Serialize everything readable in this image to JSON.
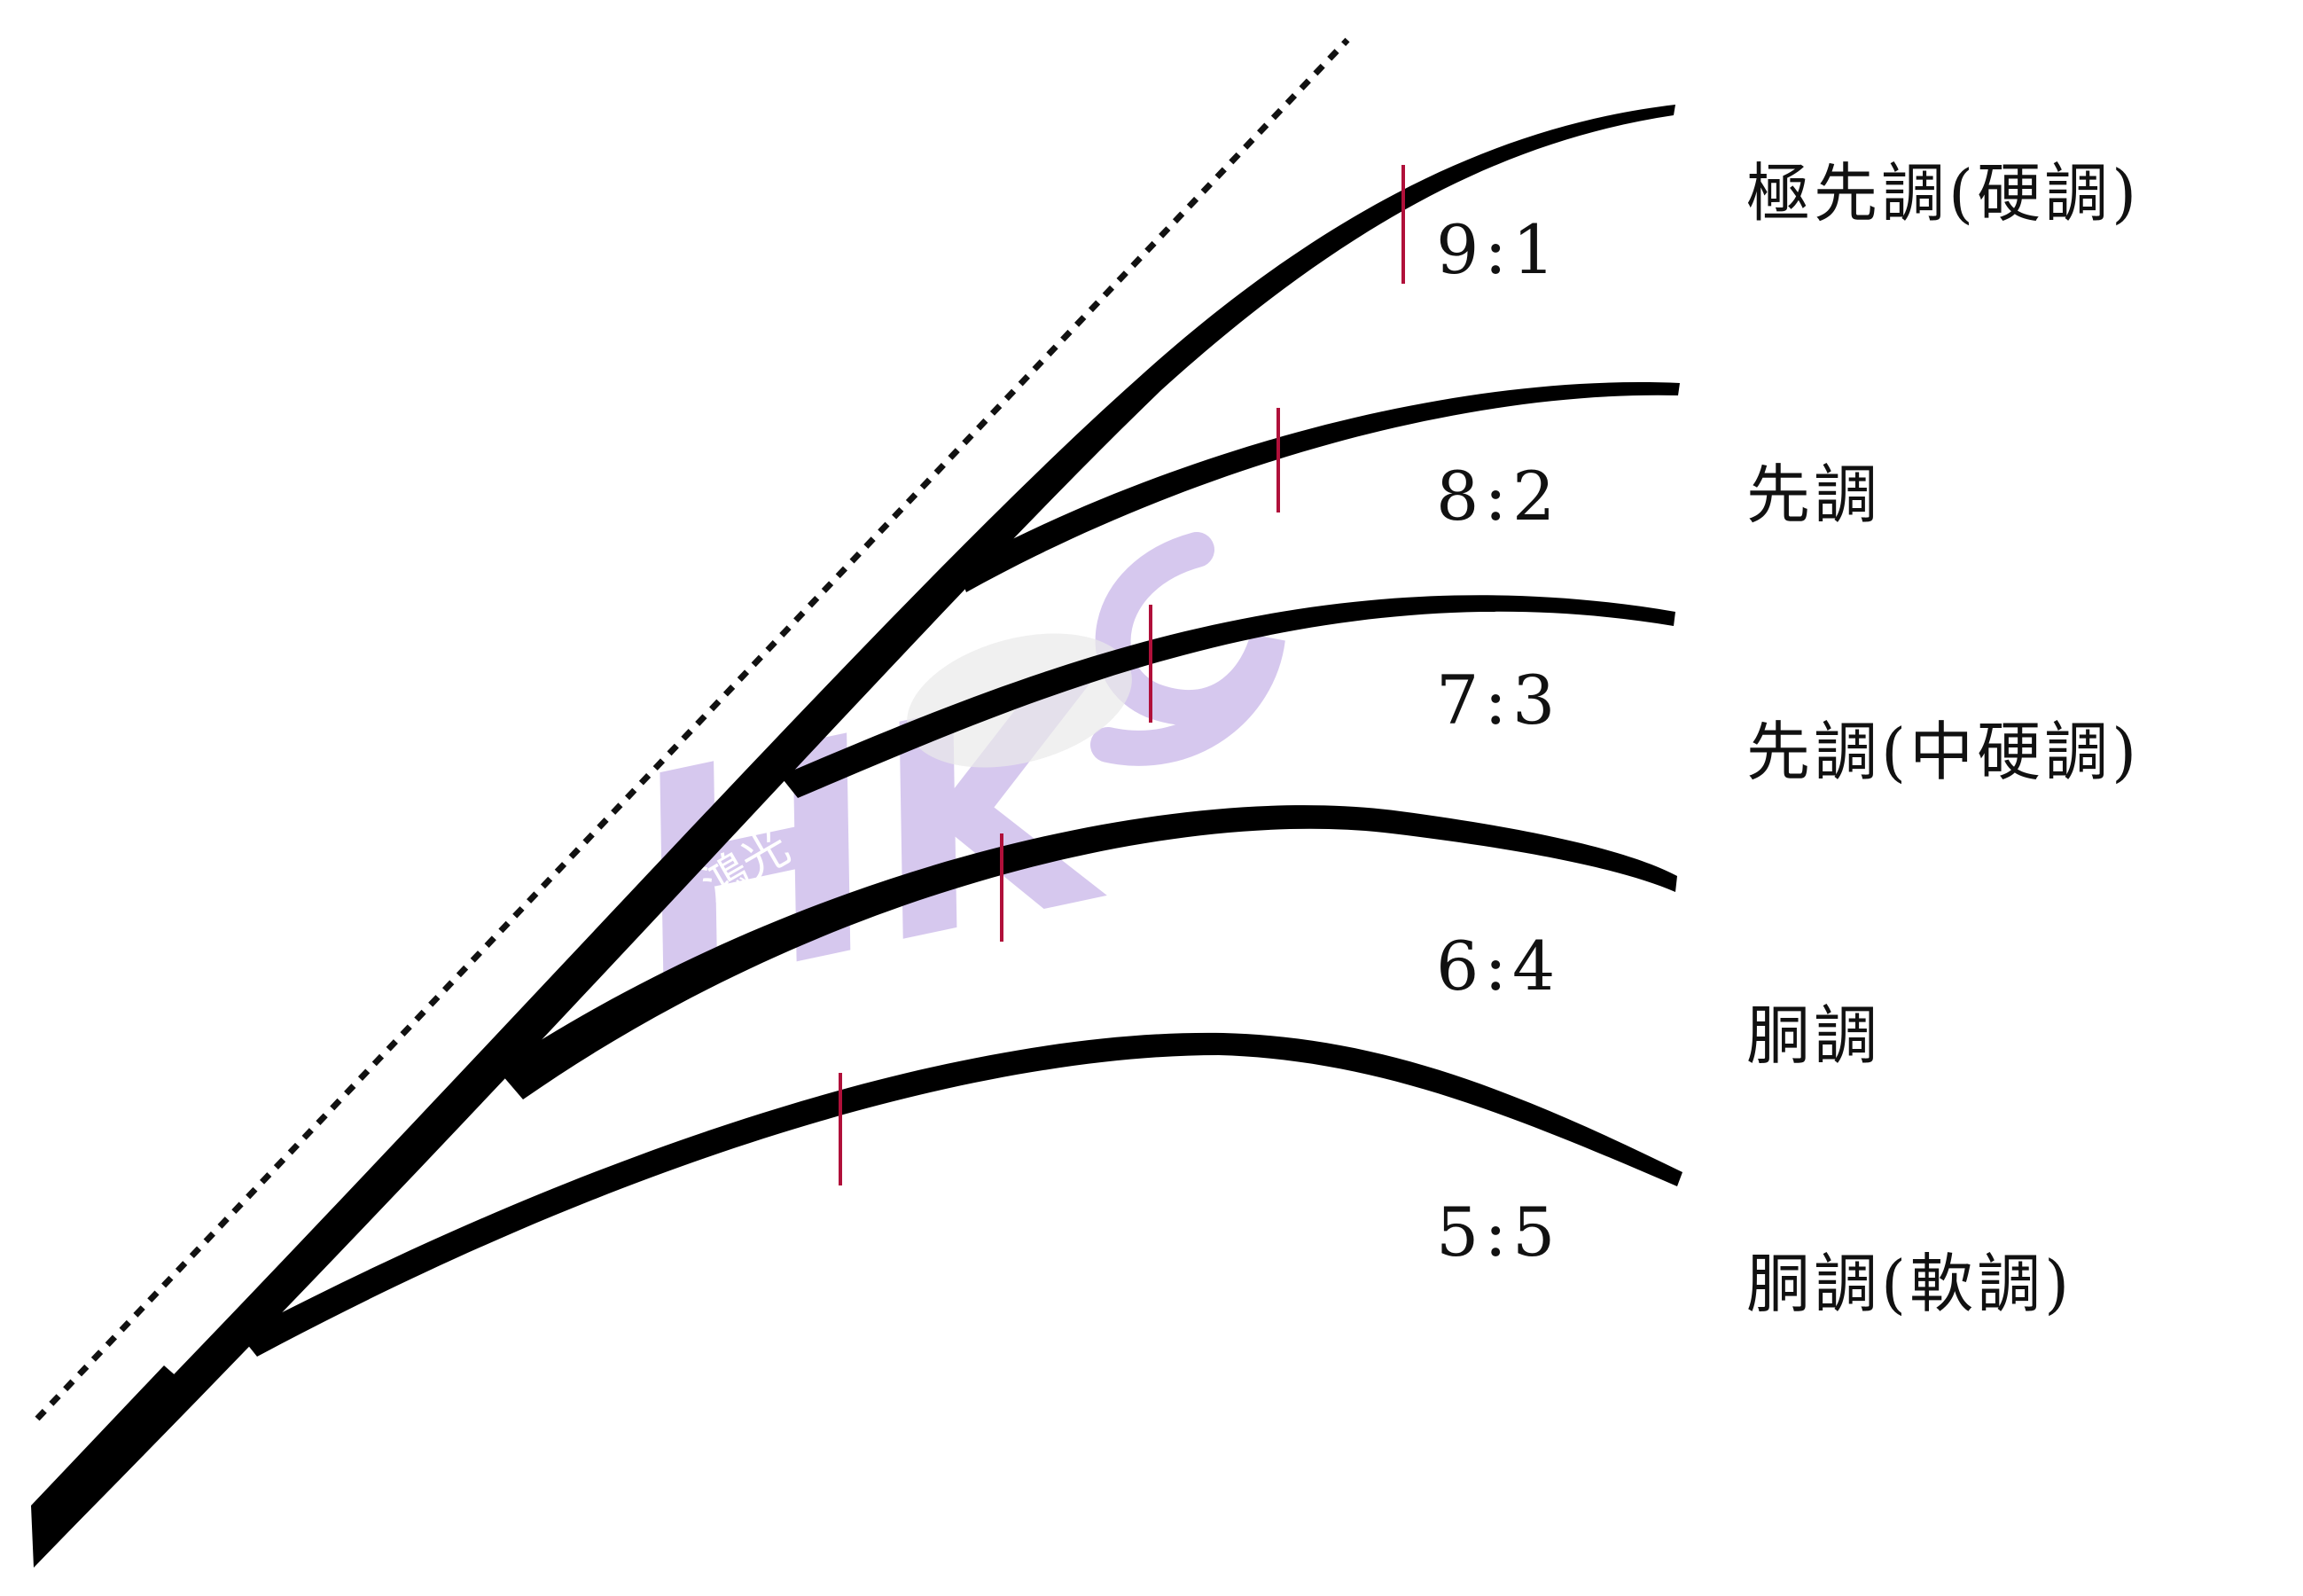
{
  "diagram": {
    "items": [
      {
        "ratio": "9:1",
        "action": "極先調(硬調)"
      },
      {
        "ratio": "8:2",
        "action": "先調"
      },
      {
        "ratio": "7:3",
        "action": "先調(中硬調)"
      },
      {
        "ratio": "6:4",
        "action": "胴調"
      },
      {
        "ratio": "5:5",
        "action": "胴調(軟調)"
      }
    ],
    "colors": {
      "rod": "#000000",
      "marker": "#b0103a",
      "watermark": "#b59be0",
      "guide_line": "#111111"
    },
    "watermark": {
      "text": "HK",
      "subtext": "鴻光"
    }
  }
}
